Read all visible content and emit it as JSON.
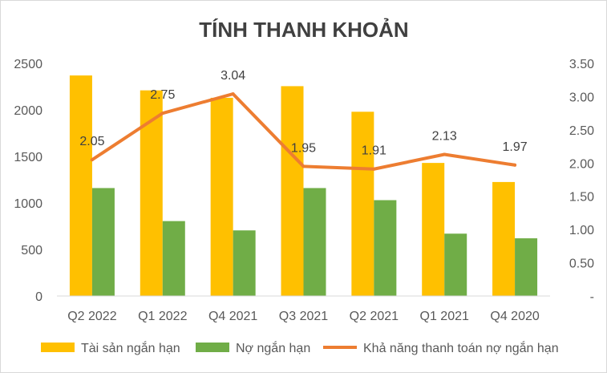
{
  "chart_data": {
    "type": "bar",
    "title": "TÍNH THANH KHOẢN",
    "categories": [
      "Q2 2022",
      "Q1 2022",
      "Q4 2021",
      "Q3 2021",
      "Q2 2021",
      "Q1 2021",
      "Q4 2020"
    ],
    "series": [
      {
        "name": "Tài sản ngắn hạn",
        "type": "bar",
        "axis": "left",
        "color": "#FFC000",
        "values": [
          2370,
          2210,
          2130,
          2255,
          1980,
          1430,
          1225
        ]
      },
      {
        "name": "Nợ ngắn hạn",
        "type": "bar",
        "axis": "left",
        "color": "#70AD47",
        "values": [
          1160,
          805,
          705,
          1160,
          1030,
          670,
          620
        ]
      },
      {
        "name": "Khả năng thanh toán nợ ngắn hạn",
        "type": "line",
        "axis": "right",
        "color": "#ED7D31",
        "values": [
          2.05,
          2.75,
          3.04,
          1.95,
          1.91,
          2.13,
          1.97
        ],
        "labels": [
          "2.05",
          "2.75",
          "3.04",
          "1.95",
          "1.91",
          "2.13",
          "1.97"
        ]
      }
    ],
    "y_left": {
      "ylim": [
        0,
        2500
      ],
      "ticks": [
        "0",
        "500",
        "1000",
        "1500",
        "2000",
        "2500"
      ]
    },
    "y_right": {
      "ylim": [
        0,
        3.5
      ],
      "ticks": [
        "-",
        "0.50",
        "1.00",
        "1.50",
        "2.00",
        "2.50",
        "3.00",
        "3.50"
      ]
    },
    "xlabel": "",
    "ylabel": "",
    "grid": false,
    "legend_position": "bottom"
  }
}
